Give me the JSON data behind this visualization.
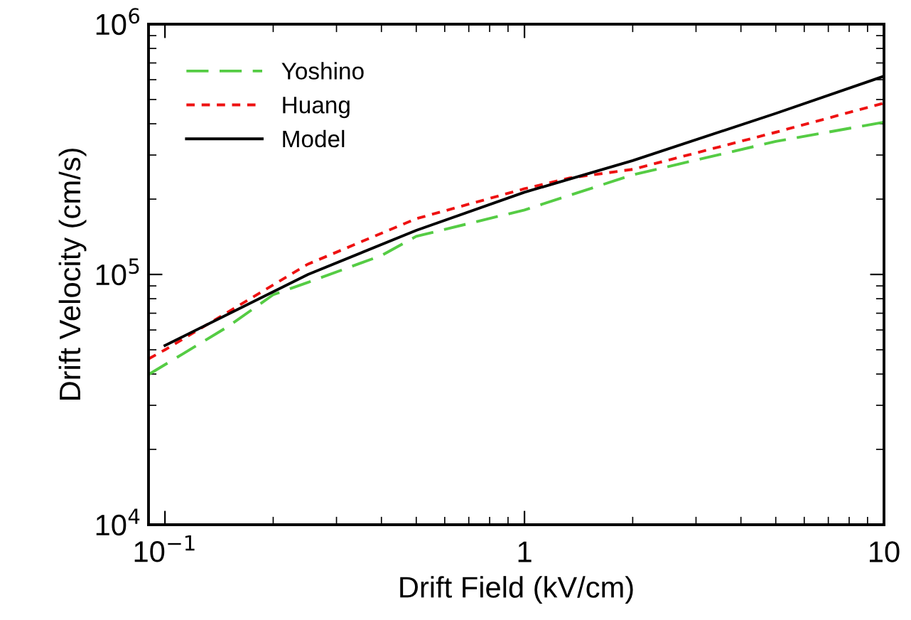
{
  "chart_data": {
    "type": "line",
    "xlabel": "Drift Field (kV/cm)",
    "ylabel": "Drift Velocity (cm/s)",
    "log": "xy",
    "grid": false,
    "legend": "top left",
    "xlim": [
      0.09,
      10
    ],
    "ylim": [
      10000,
      1000000
    ],
    "xticks": [
      {
        "value": 0.1,
        "label": "10$^{−1}$"
      },
      1,
      10
    ],
    "yticks": [
      {
        "value": 10000,
        "label": "10$^{4}$"
      },
      {
        "value": 100000,
        "label": "10$^{5}$"
      },
      {
        "value": 1000000,
        "label": "10$^{6}$"
      }
    ],
    "series": [
      {
        "name": "Yoshino",
        "color": "#55cc44",
        "line_style": "dashed",
        "x": [
          0.09,
          0.15,
          0.2,
          0.25,
          0.4,
          0.5,
          1,
          2,
          5,
          10
        ],
        "values": [
          39800,
          62000,
          83000,
          93000,
          119000,
          142000,
          181000,
          250000,
          340000,
          406000
        ]
      },
      {
        "name": "Huang",
        "color": "#ee1111",
        "line_style": "dotted",
        "x": [
          0.09,
          0.1,
          0.25,
          0.5,
          1,
          1.34,
          2,
          5,
          10
        ],
        "values": [
          46000,
          50000,
          110000,
          167000,
          220000,
          243000,
          263000,
          370000,
          484000
        ]
      },
      {
        "name": "Model",
        "color": "#000000",
        "line_style": "solid",
        "x": [
          0.1,
          0.25,
          0.5,
          1,
          2,
          5,
          10
        ],
        "values": [
          52000,
          100000,
          150000,
          213000,
          285000,
          440000,
          620000
        ]
      }
    ]
  }
}
